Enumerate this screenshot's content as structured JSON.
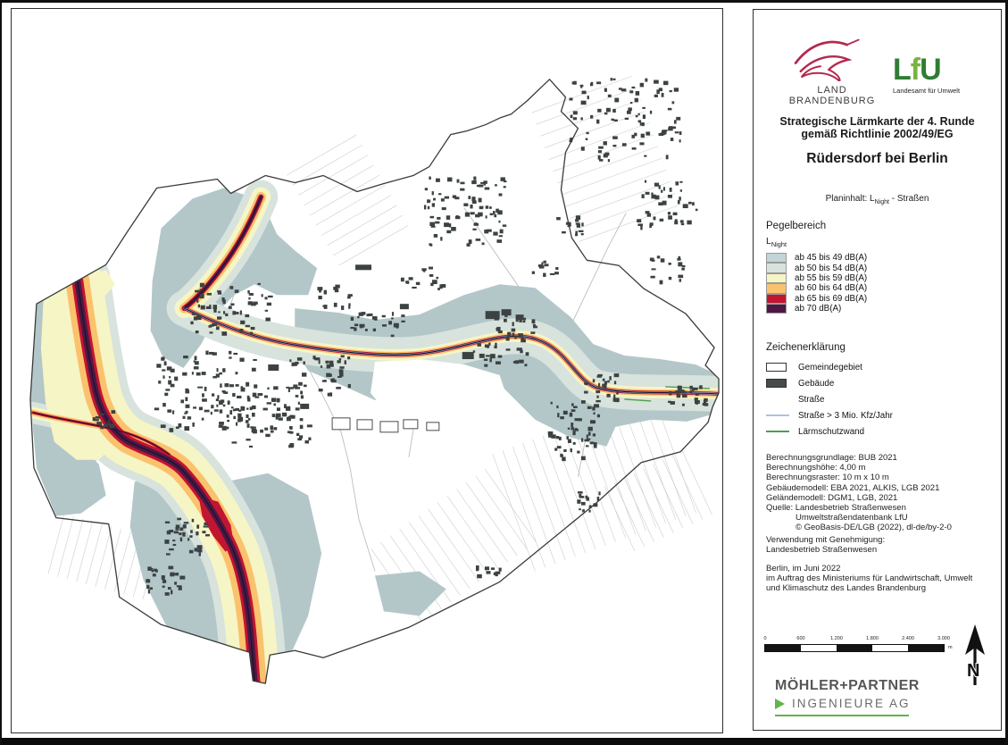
{
  "header": {
    "brandenburg_logo": {
      "line1": "LAND",
      "line2": "BRANDENBURG",
      "bird_color": "#b32a4e"
    },
    "lfu_logo": {
      "l": "L",
      "f": "f",
      "u": "U",
      "caption": "Landesamt für Umwelt",
      "green_dark": "#2f7d33",
      "green_light": "#7ab33f"
    },
    "title_line1": "Strategische Lärmkarte der 4. Runde",
    "title_line2": "gemäß Richtlinie 2002/49/EG",
    "subtitle": "Rüdersdorf bei Berlin",
    "planinhalt_prefix": "Planinhalt: L",
    "planinhalt_sub": "Night",
    "planinhalt_suffix": " - Straßen"
  },
  "pegelbereich": {
    "heading": "Pegelbereich",
    "sub_label_main": "L",
    "sub_label_sub": "Night",
    "classes": [
      {
        "label": "ab 45 bis 49 dB(A)",
        "color": "#c2d5d7"
      },
      {
        "label": "ab 50 bis 54 dB(A)",
        "color": "#d7e3dc"
      },
      {
        "label": "ab 55 bis 59 dB(A)",
        "color": "#f6f5c6"
      },
      {
        "label": "ab 60 bis 64 dB(A)",
        "color": "#fac26c"
      },
      {
        "label": "ab 65 bis 69 dB(A)",
        "color": "#c31432"
      },
      {
        "label": "ab 70 dB(A)",
        "color": "#4d1844"
      }
    ]
  },
  "zeichenerklaerung": {
    "heading": "Zeichenerklärung",
    "items": [
      {
        "label": "Gemeindegebiet",
        "symbol": "area-outline",
        "color": "#ffffff"
      },
      {
        "label": "Gebäude",
        "symbol": "area-filled",
        "color": "#474b4b"
      },
      {
        "label": "Straße",
        "symbol": "none",
        "color": ""
      },
      {
        "label": "Straße > 3 Mio. Kfz/Jahr",
        "symbol": "line",
        "color": "#a9c4dc"
      },
      {
        "label": "Lärmschutzwand",
        "symbol": "line",
        "color": "#4f9e50"
      }
    ]
  },
  "info_block": {
    "lines": [
      "Berechnungsgrundlage: BUB 2021",
      "Berechnungshöhe: 4,00 m",
      "Berechnungsraster: 10 m x 10 m",
      "Gebäudemodell: EBA 2021, ALKIS, LGB 2021",
      "Geländemodell: DGM1, LGB, 2021",
      "Quelle: Landesbetrieb Straßenwesen",
      "Umweltstraßendatenbank LfU",
      "© GeoBasis-DE/LGB (2022), dl-de/by-2-0"
    ]
  },
  "permission": {
    "line1": "Verwendung mit Genehmigung:",
    "line2": "Landesbetrieb Straßenwesen"
  },
  "imprint": {
    "line1": "Berlin, im Juni 2022",
    "line2": "im Auftrag des Ministeriums für Landwirtschaft, Umwelt",
    "line3": "und Klimaschutz des Landes Brandenburg"
  },
  "scalebar": {
    "labels": [
      "0",
      "600",
      "1.200",
      "1.800",
      "2.400",
      "3.000"
    ],
    "unit": "m"
  },
  "north_arrow": {
    "letter": "N"
  },
  "moehler_logo": {
    "line1": "MÖHLER+PARTNER",
    "line2": "INGENIEURE AG",
    "green": "#62b547"
  }
}
